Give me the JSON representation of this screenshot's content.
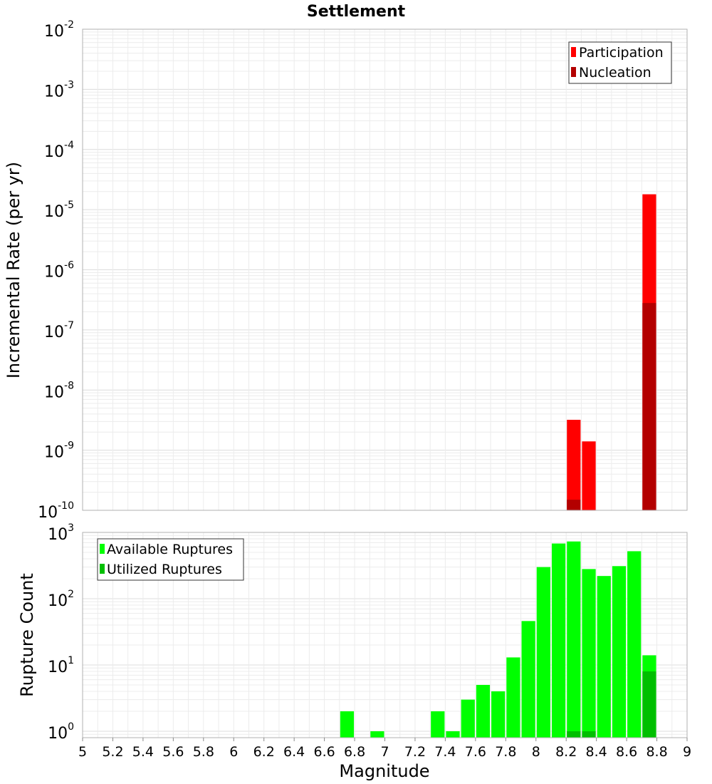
{
  "chart_data": [
    {
      "type": "bar",
      "title": "Settlement",
      "ylabel": "Incremental Rate (per yr)",
      "yscale": "log",
      "ylim": [
        1e-10,
        0.01
      ],
      "y_ticks": [
        {
          "base": "10",
          "exp": "-2"
        },
        {
          "base": "10",
          "exp": "-3"
        },
        {
          "base": "10",
          "exp": "-4"
        },
        {
          "base": "10",
          "exp": "-5"
        },
        {
          "base": "10",
          "exp": "-6"
        },
        {
          "base": "10",
          "exp": "-7"
        },
        {
          "base": "10",
          "exp": "-8"
        },
        {
          "base": "10",
          "exp": "-9"
        },
        {
          "base": "10",
          "exp": "-10"
        }
      ],
      "xlim": [
        5,
        9
      ],
      "bar_width": 0.1,
      "grid": true,
      "legend_position": "top-right",
      "series": [
        {
          "name": "Participation",
          "color": "#ff0000",
          "x": [
            8.25,
            8.35,
            8.75
          ],
          "values": [
            3.2e-09,
            1.4e-09,
            1.8e-05
          ]
        },
        {
          "name": "Nucleation",
          "color": "#b30000",
          "x": [
            8.25,
            8.75
          ],
          "values": [
            1.5e-10,
            2.8e-07
          ]
        }
      ]
    },
    {
      "type": "bar",
      "ylabel": "Rupture Count",
      "xlabel": "Magnitude",
      "yscale": "log",
      "ylim": [
        0.8,
        1000
      ],
      "y_ticks": [
        {
          "base": "10",
          "exp": "3",
          "value": 1000
        },
        {
          "base": "10",
          "exp": "2",
          "value": 100
        },
        {
          "base": "10",
          "exp": "1",
          "value": 10
        },
        {
          "base": "10",
          "exp": "0",
          "value": 1
        }
      ],
      "xlim": [
        5,
        9
      ],
      "x_ticks": [
        "5",
        "5.2",
        "5.4",
        "5.6",
        "5.8",
        "6",
        "6.2",
        "6.4",
        "6.6",
        "6.8",
        "7",
        "7.2",
        "7.4",
        "7.6",
        "7.8",
        "8",
        "8.2",
        "8.4",
        "8.6",
        "8.8",
        "9"
      ],
      "bar_width": 0.1,
      "grid": true,
      "legend_position": "top-left",
      "series": [
        {
          "name": "Available Ruptures",
          "color": "#00ff00",
          "x": [
            6.75,
            6.95,
            7.35,
            7.45,
            7.55,
            7.65,
            7.75,
            7.85,
            7.95,
            8.05,
            8.15,
            8.25,
            8.35,
            8.45,
            8.55,
            8.65,
            8.75
          ],
          "values": [
            2,
            1,
            2,
            1,
            3,
            5,
            4,
            13,
            46,
            300,
            680,
            730,
            280,
            220,
            310,
            520,
            14
          ]
        },
        {
          "name": "Utilized Ruptures",
          "color": "#00bf00",
          "x": [
            8.25,
            8.35,
            8.75
          ],
          "values": [
            1,
            1,
            8
          ]
        }
      ]
    }
  ]
}
